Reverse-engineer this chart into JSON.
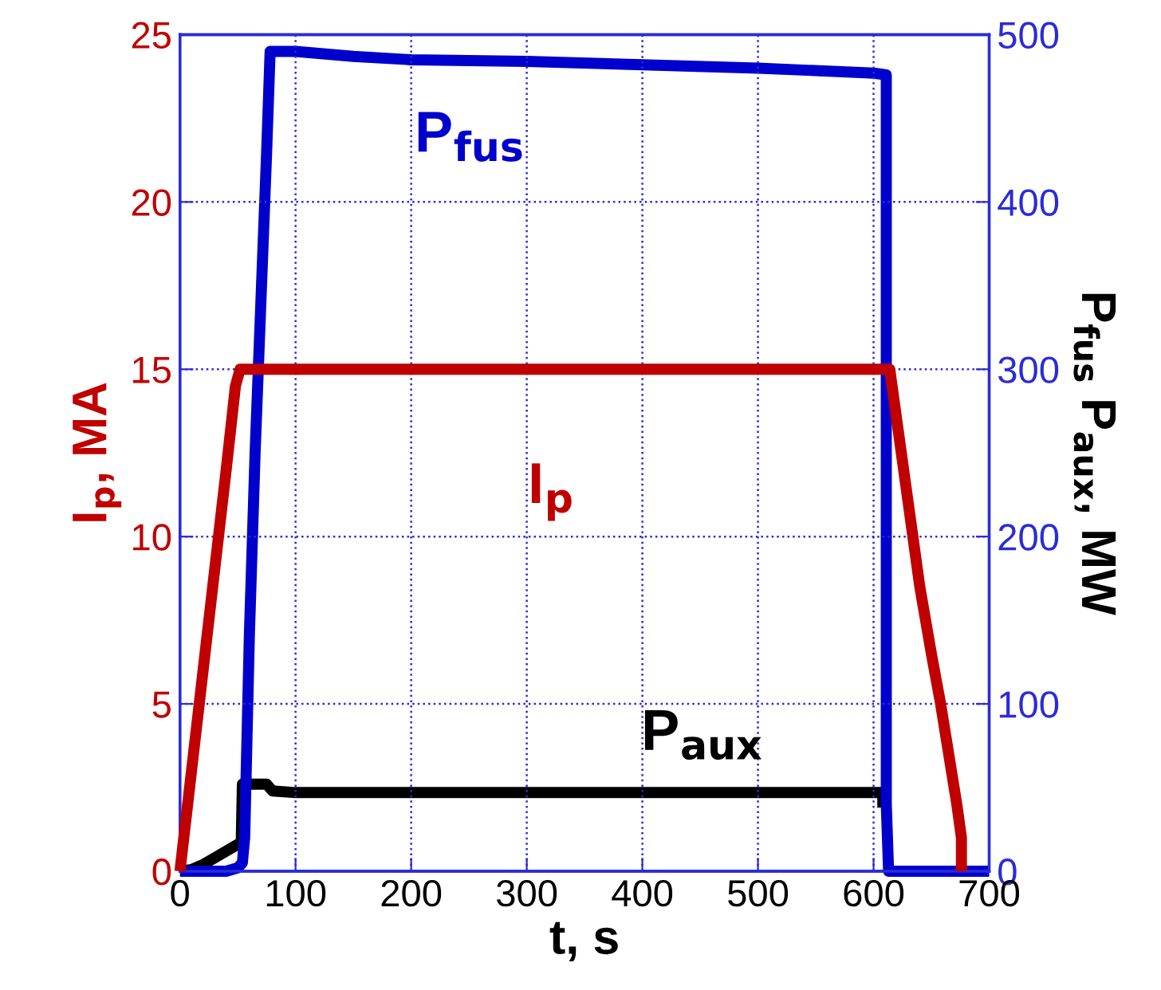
{
  "chart_data": {
    "type": "line",
    "xlabel": "t, s",
    "ylabel": "I$_{p}$, MA",
    "y2label": "P$_{fus}$ P$_{aux}$, MW",
    "xlim": [
      0,
      700
    ],
    "xticks": [
      0,
      100,
      200,
      300,
      400,
      500,
      600,
      700
    ],
    "ylim": [
      0,
      25
    ],
    "yticks": [
      0,
      5,
      10,
      15,
      20,
      25
    ],
    "y2lim": [
      0,
      500
    ],
    "y2ticks": [
      0,
      100,
      200,
      300,
      400,
      500
    ],
    "grid": true,
    "legend": false,
    "line_style": "solid",
    "marker": "none",
    "series": [
      {
        "name": "I$_{p}$",
        "color": "#c00000",
        "x": [
          0,
          10,
          20,
          30,
          40,
          48,
          52,
          100,
          200,
          300,
          400,
          500,
          600,
          614,
          620,
          630,
          640,
          650,
          658,
          665,
          672,
          676,
          676
        ],
        "values": [
          0,
          3,
          6,
          9,
          12,
          14.5,
          15,
          15,
          15,
          15,
          15,
          15,
          15,
          15,
          13.5,
          11,
          8.5,
          6.5,
          5,
          3.5,
          2,
          1,
          0
        ]
      },
      {
        "name": "P$_{fus}$",
        "color": "#0000cc",
        "axis": "y2",
        "x": [
          0,
          40,
          50,
          54,
          56,
          60,
          65,
          70,
          75,
          78,
          100,
          150,
          200,
          300,
          400,
          500,
          600,
          611,
          611,
          613,
          700
        ],
        "values": [
          0,
          0,
          2,
          5,
          20,
          140,
          250,
          340,
          430,
          490,
          490,
          487,
          485,
          484,
          482,
          480,
          477,
          476,
          40,
          0,
          0
        ]
      },
      {
        "name": "P$_{aux}$",
        "color": "#000000",
        "axis": "y2",
        "x": [
          0,
          10,
          20,
          30,
          40,
          50,
          53,
          54,
          75,
          80,
          100,
          200,
          300,
          400,
          500,
          600,
          608,
          608
        ],
        "values": [
          0,
          1,
          4,
          8,
          12,
          16,
          17,
          52,
          52,
          48,
          47,
          47,
          47,
          47,
          47,
          47,
          47,
          38
        ]
      }
    ]
  }
}
